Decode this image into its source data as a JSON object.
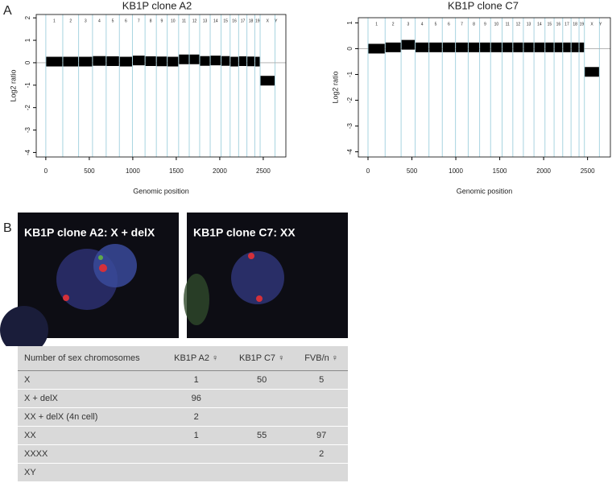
{
  "panel_a": {
    "label": "A"
  },
  "chart_data": [
    {
      "type": "segments",
      "title": "KB1P clone A2",
      "x_label": "Genomic position",
      "y_label": "Log2 ratio",
      "xlim": [
        -110,
        2760
      ],
      "xticks": [
        0,
        500,
        1000,
        1500,
        2000,
        2500
      ],
      "ylim": [
        -4.2,
        2.15
      ],
      "yticks": [
        -4,
        -3,
        -2,
        -1,
        0,
        1,
        2
      ],
      "chromosomes": [
        "1",
        "2",
        "3",
        "4",
        "5",
        "6",
        "7",
        "8",
        "9",
        "10",
        "11",
        "12",
        "13",
        "14",
        "15",
        "16",
        "17",
        "18",
        "19",
        "X",
        "Y"
      ],
      "starts": [
        0,
        195,
        377,
        537,
        694,
        846,
        996,
        1141,
        1271,
        1396,
        1527,
        1649,
        1769,
        1890,
        2015,
        2119,
        2217,
        2312,
        2403,
        2464,
        2635
      ],
      "ends": [
        195,
        377,
        537,
        694,
        846,
        996,
        1141,
        1271,
        1396,
        1527,
        1649,
        1769,
        1890,
        2015,
        2119,
        2217,
        2312,
        2403,
        2464,
        2635,
        2660
      ],
      "values": [
        0.05,
        0.05,
        0.05,
        0.08,
        0.07,
        0.05,
        0.1,
        0.07,
        0.06,
        0.05,
        0.15,
        0.15,
        0.08,
        0.1,
        0.08,
        0.05,
        0.07,
        0.06,
        0.05,
        -0.8,
        null
      ],
      "color": "#000000",
      "boundary_color": "#a8d4e0"
    },
    {
      "type": "segments",
      "title": "KB1P clone C7",
      "x_label": "Genomic position",
      "y_label": "Log2 ratio",
      "xlim": [
        -110,
        2760
      ],
      "xticks": [
        0,
        500,
        1000,
        1500,
        2000,
        2500
      ],
      "ylim": [
        -4.2,
        1.2
      ],
      "yticks": [
        -4,
        -3,
        -2,
        -1,
        0,
        1
      ],
      "chromosomes": [
        "1",
        "2",
        "3",
        "4",
        "5",
        "6",
        "7",
        "8",
        "9",
        "10",
        "11",
        "12",
        "13",
        "14",
        "15",
        "16",
        "17",
        "18",
        "19",
        "X",
        "Y"
      ],
      "starts": [
        0,
        195,
        377,
        537,
        694,
        846,
        996,
        1141,
        1271,
        1396,
        1527,
        1649,
        1769,
        1890,
        2015,
        2119,
        2217,
        2312,
        2403,
        2464,
        2635
      ],
      "ends": [
        195,
        377,
        537,
        694,
        846,
        996,
        1141,
        1271,
        1396,
        1527,
        1649,
        1769,
        1890,
        2015,
        2119,
        2217,
        2312,
        2403,
        2464,
        2635,
        2660
      ],
      "values": [
        0.0,
        0.05,
        0.15,
        0.05,
        0.05,
        0.05,
        0.05,
        0.05,
        0.05,
        0.05,
        0.05,
        0.05,
        0.05,
        0.05,
        0.05,
        0.05,
        0.05,
        0.05,
        0.05,
        -0.9,
        null
      ],
      "color": "#000000",
      "boundary_color": "#a8d4e0"
    }
  ],
  "panel_b": {
    "label": "B",
    "images": [
      "KB1P clone A2: X + delX",
      "KB1P clone C7: XX"
    ]
  },
  "table": {
    "header": [
      "Number of sex chromosomes",
      "KB1P A2 ♀",
      "KB1P C7 ♀",
      "FVB/n ♀"
    ],
    "rows": [
      [
        "X",
        1,
        50,
        5
      ],
      [
        "X + delX",
        96,
        null,
        null
      ],
      [
        "XX + delX (4n cell)",
        2,
        null,
        null
      ],
      [
        "XX",
        1,
        55,
        97
      ],
      [
        "XXXX",
        null,
        null,
        2
      ],
      [
        "XY",
        null,
        null,
        null
      ]
    ]
  }
}
